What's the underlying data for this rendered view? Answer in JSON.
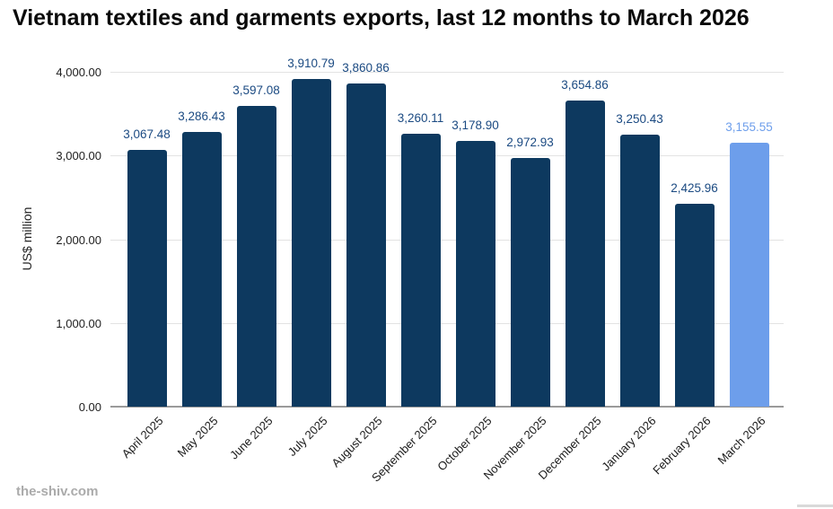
{
  "title": "Vietnam textiles and garments exports, last 12 months to March 2026",
  "watermark": "the-shiv.com",
  "chart_data": {
    "type": "bar",
    "title": "Vietnam textiles and garments exports, last 12 months to March 2026",
    "xlabel": "",
    "ylabel": "US$ million",
    "ylim": [
      0,
      4000
    ],
    "grid": true,
    "legend": "none",
    "categories": [
      "April 2025",
      "May 2025",
      "June 2025",
      "July 2025",
      "August 2025",
      "September 2025",
      "October 2025",
      "November 2025",
      "December 2025",
      "January 2026",
      "February 2026",
      "March 2026"
    ],
    "values": [
      3067.48,
      3286.43,
      3597.08,
      3910.79,
      3860.86,
      3260.11,
      3178.9,
      2972.93,
      3654.86,
      3250.43,
      2425.96,
      3155.55
    ],
    "value_labels": [
      "3,067.48",
      "3,286.43",
      "3,597.08",
      "3,910.79",
      "3,860.86",
      "3,260.11",
      "3,178.90",
      "2,972.93",
      "3,654.86",
      "3,250.43",
      "2,425.96",
      "3,155.55"
    ],
    "yticks": [
      {
        "value": 0,
        "label": "0.00"
      },
      {
        "value": 1000,
        "label": "1,000.00"
      },
      {
        "value": 2000,
        "label": "2,000.00"
      },
      {
        "value": 3000,
        "label": "3,000.00"
      },
      {
        "value": 4000,
        "label": "4,000.00"
      }
    ],
    "colors": {
      "bar": "#0d395f",
      "highlight_bar": "#6d9eeb",
      "label": "#1b4a82",
      "highlight_label": "#6d9eeb",
      "gridline": "#e3e3e3",
      "axis_line": "#9a9a9a"
    },
    "highlight_index": 11
  }
}
